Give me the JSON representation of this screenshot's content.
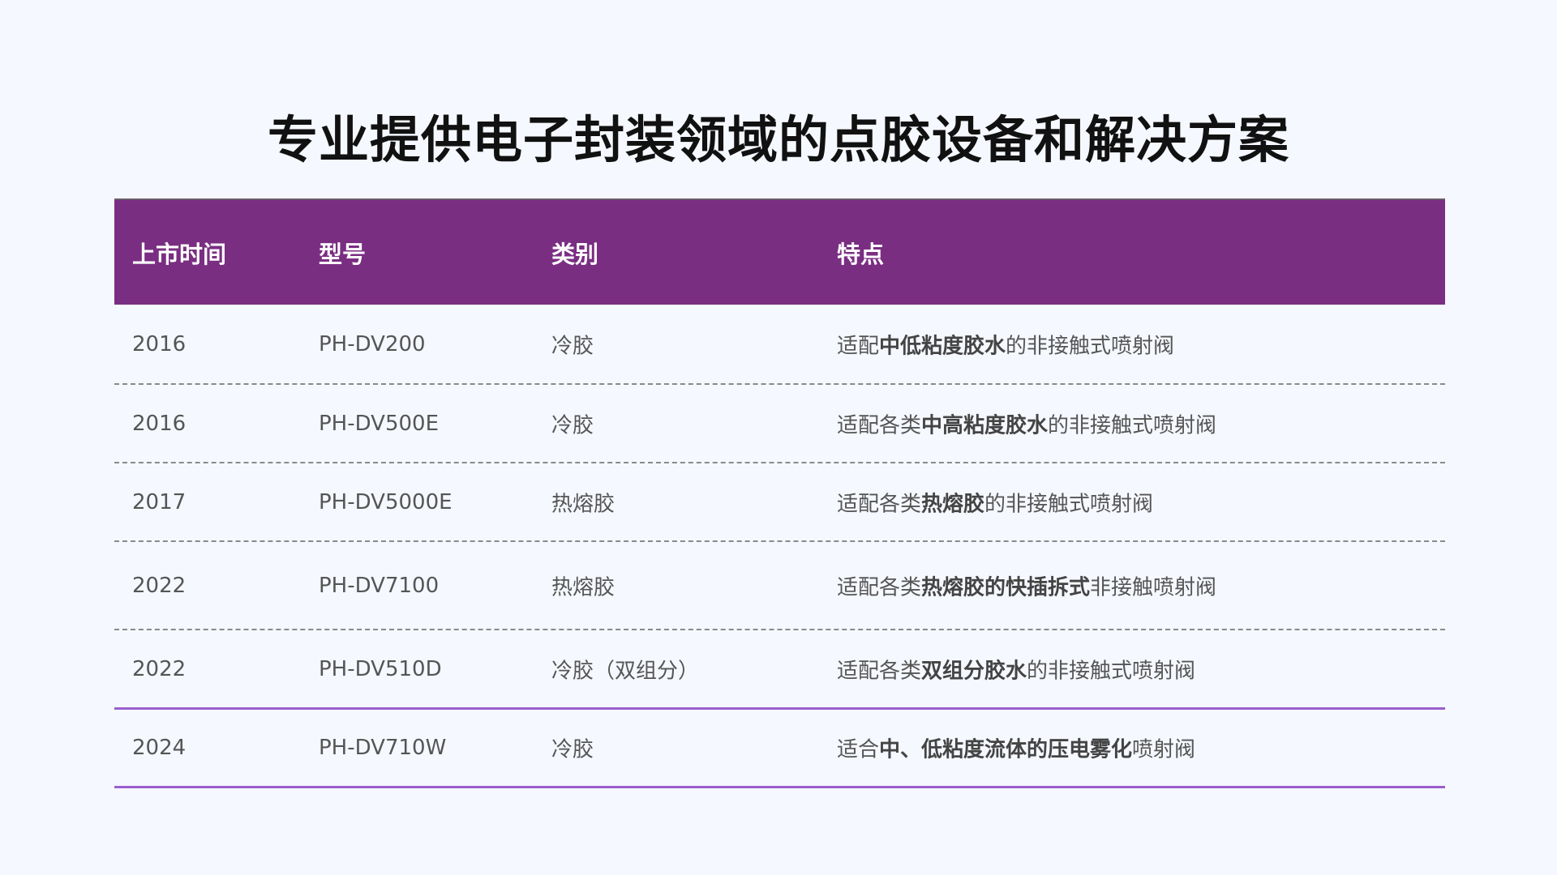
{
  "title": "专业提供电子封装领域的点胶设备和解决方案",
  "columns": [
    "上市时间",
    "型号",
    "类别",
    "特点"
  ],
  "rows": [
    {
      "year": "2016",
      "model": "PH-DV200",
      "category": "冷胶",
      "feature": [
        {
          "t": "适配",
          "b": false
        },
        {
          "t": "中低粘度胶水",
          "b": true
        },
        {
          "t": "的非接触式喷射阀",
          "b": false
        }
      ]
    },
    {
      "year": "2016",
      "model": "PH-DV500E",
      "category": "冷胶",
      "feature": [
        {
          "t": "适配各类",
          "b": false
        },
        {
          "t": "中高粘度胶水",
          "b": true
        },
        {
          "t": "的非接触式喷射阀",
          "b": false
        }
      ]
    },
    {
      "year": "2017",
      "model": "PH-DV5000E",
      "category": "热熔胶",
      "feature": [
        {
          "t": "适配各类",
          "b": false
        },
        {
          "t": "热熔胶",
          "b": true
        },
        {
          "t": "的非接触式喷射阀",
          "b": false
        }
      ]
    },
    {
      "year": "2022",
      "model": "PH-DV7100",
      "category": "热熔胶",
      "feature": [
        {
          "t": "适配各类",
          "b": false
        },
        {
          "t": "热熔胶的快插拆式",
          "b": true
        },
        {
          "t": "非接触喷射阀",
          "b": false
        }
      ]
    },
    {
      "year": "2022",
      "model": "PH-DV510D",
      "category": "冷胶（双组分）",
      "feature": [
        {
          "t": "适配各类",
          "b": false
        },
        {
          "t": "双组分胶水",
          "b": true
        },
        {
          "t": "的非接触式喷射阀",
          "b": false
        }
      ]
    },
    {
      "year": "2024",
      "model": "PH-DV710W",
      "category": "冷胶",
      "feature": [
        {
          "t": "适合",
          "b": false
        },
        {
          "t": "中、低粘度流体的压电雾化",
          "b": true
        },
        {
          "t": "喷射阀",
          "b": false
        }
      ]
    }
  ],
  "colors": {
    "header": "#7a2e82",
    "accent_line": "#9b5fcf",
    "background": "#f5f8fe"
  }
}
